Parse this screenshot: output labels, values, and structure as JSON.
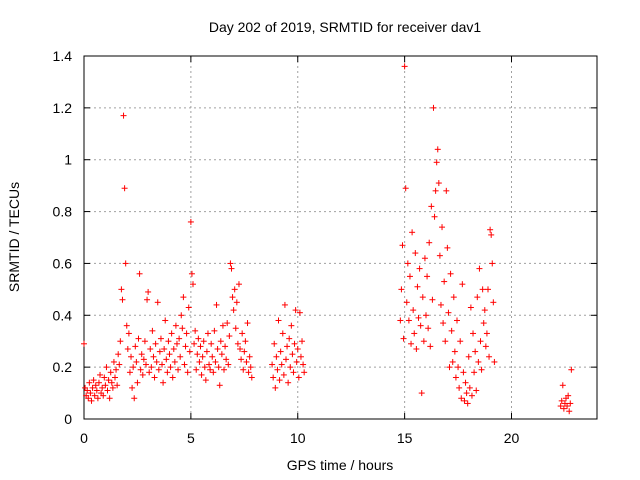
{
  "chart_data": {
    "type": "scatter",
    "title": "Day 202 of 2019, SRMTID for receiver dav1",
    "xlabel": "GPS time / hours",
    "ylabel": "SRMTID / TECUs",
    "xlim": [
      0,
      24
    ],
    "ylim": [
      0,
      1.4
    ],
    "xticks": [
      0,
      5,
      10,
      15,
      20
    ],
    "yticks": [
      0,
      0.2,
      0.4,
      0.6,
      0.8,
      1,
      1.2,
      1.4
    ],
    "xtick_labels": [
      "0",
      "5",
      "10",
      "15",
      "20"
    ],
    "ytick_labels": [
      "0",
      "0.2",
      "0.4",
      "0.6",
      "0.8",
      "1",
      "1.2",
      "1.4"
    ],
    "grid": true,
    "marker": "+",
    "series": [
      {
        "name": "SRMTID",
        "color": "#ff0000",
        "points": [
          [
            0.0,
            0.29
          ],
          [
            0.05,
            0.12
          ],
          [
            0.1,
            0.09
          ],
          [
            0.15,
            0.11
          ],
          [
            0.2,
            0.08
          ],
          [
            0.25,
            0.14
          ],
          [
            0.3,
            0.1
          ],
          [
            0.35,
            0.07
          ],
          [
            0.4,
            0.12
          ],
          [
            0.45,
            0.15
          ],
          [
            0.5,
            0.09
          ],
          [
            0.55,
            0.13
          ],
          [
            0.6,
            0.11
          ],
          [
            0.65,
            0.08
          ],
          [
            0.7,
            0.14
          ],
          [
            0.75,
            0.17
          ],
          [
            0.8,
            0.1
          ],
          [
            0.85,
            0.12
          ],
          [
            0.9,
            0.09
          ],
          [
            0.95,
            0.16
          ],
          [
            1.0,
            0.13
          ],
          [
            1.05,
            0.2
          ],
          [
            1.1,
            0.11
          ],
          [
            1.15,
            0.15
          ],
          [
            1.2,
            0.08
          ],
          [
            1.25,
            0.18
          ],
          [
            1.3,
            0.14
          ],
          [
            1.35,
            0.12
          ],
          [
            1.4,
            0.22
          ],
          [
            1.45,
            0.16
          ],
          [
            1.5,
            0.19
          ],
          [
            1.55,
            0.13
          ],
          [
            1.6,
            0.25
          ],
          [
            1.65,
            0.21
          ],
          [
            1.7,
            0.3
          ],
          [
            1.75,
            0.5
          ],
          [
            1.8,
            0.46
          ],
          [
            1.85,
            1.17
          ],
          [
            1.9,
            0.89
          ],
          [
            1.95,
            0.6
          ],
          [
            2.0,
            0.36
          ],
          [
            2.05,
            0.27
          ],
          [
            2.1,
            0.33
          ],
          [
            2.15,
            0.18
          ],
          [
            2.2,
            0.24
          ],
          [
            2.25,
            0.12
          ],
          [
            2.3,
            0.2
          ],
          [
            2.35,
            0.08
          ],
          [
            2.4,
            0.28
          ],
          [
            2.45,
            0.22
          ],
          [
            2.5,
            0.14
          ],
          [
            2.55,
            0.31
          ],
          [
            2.6,
            0.56
          ],
          [
            2.65,
            0.19
          ],
          [
            2.7,
            0.25
          ],
          [
            2.75,
            0.17
          ],
          [
            2.8,
            0.23
          ],
          [
            2.85,
            0.3
          ],
          [
            2.9,
            0.21
          ],
          [
            2.95,
            0.46
          ],
          [
            3.0,
            0.49
          ],
          [
            3.05,
            0.18
          ],
          [
            3.1,
            0.27
          ],
          [
            3.15,
            0.2
          ],
          [
            3.2,
            0.34
          ],
          [
            3.25,
            0.24
          ],
          [
            3.3,
            0.16
          ],
          [
            3.35,
            0.29
          ],
          [
            3.4,
            0.22
          ],
          [
            3.45,
            0.45
          ],
          [
            3.5,
            0.19
          ],
          [
            3.55,
            0.26
          ],
          [
            3.6,
            0.31
          ],
          [
            3.65,
            0.21
          ],
          [
            3.7,
            0.14
          ],
          [
            3.75,
            0.27
          ],
          [
            3.8,
            0.38
          ],
          [
            3.85,
            0.23
          ],
          [
            3.9,
            0.18
          ],
          [
            3.95,
            0.3
          ],
          [
            4.0,
            0.25
          ],
          [
            4.05,
            0.2
          ],
          [
            4.1,
            0.33
          ],
          [
            4.15,
            0.16
          ],
          [
            4.2,
            0.27
          ],
          [
            4.25,
            0.22
          ],
          [
            4.3,
            0.36
          ],
          [
            4.35,
            0.29
          ],
          [
            4.4,
            0.19
          ],
          [
            4.45,
            0.31
          ],
          [
            4.5,
            0.24
          ],
          [
            4.55,
            0.4
          ],
          [
            4.6,
            0.35
          ],
          [
            4.65,
            0.47
          ],
          [
            4.7,
            0.21
          ],
          [
            4.75,
            0.28
          ],
          [
            4.8,
            0.33
          ],
          [
            4.85,
            0.18
          ],
          [
            4.9,
            0.43
          ],
          [
            4.95,
            0.26
          ],
          [
            5.0,
            0.76
          ],
          [
            5.05,
            0.56
          ],
          [
            5.1,
            0.52
          ],
          [
            5.15,
            0.29
          ],
          [
            5.2,
            0.34
          ],
          [
            5.25,
            0.19
          ],
          [
            5.3,
            0.25
          ],
          [
            5.35,
            0.31
          ],
          [
            5.4,
            0.22
          ],
          [
            5.45,
            0.28
          ],
          [
            5.5,
            0.17
          ],
          [
            5.55,
            0.24
          ],
          [
            5.6,
            0.3
          ],
          [
            5.65,
            0.2
          ],
          [
            5.7,
            0.15
          ],
          [
            5.75,
            0.26
          ],
          [
            5.8,
            0.33
          ],
          [
            5.85,
            0.21
          ],
          [
            5.9,
            0.19
          ],
          [
            5.95,
            0.29
          ],
          [
            6.0,
            0.24
          ],
          [
            6.05,
            0.18
          ],
          [
            6.1,
            0.34
          ],
          [
            6.15,
            0.22
          ],
          [
            6.2,
            0.44
          ],
          [
            6.25,
            0.27
          ],
          [
            6.3,
            0.2
          ],
          [
            6.35,
            0.13
          ],
          [
            6.4,
            0.3
          ],
          [
            6.45,
            0.25
          ],
          [
            6.5,
            0.36
          ],
          [
            6.55,
            0.19
          ],
          [
            6.6,
            0.28
          ],
          [
            6.65,
            0.23
          ],
          [
            6.7,
            0.37
          ],
          [
            6.75,
            0.21
          ],
          [
            6.8,
            0.32
          ],
          [
            6.85,
            0.6
          ],
          [
            6.9,
            0.58
          ],
          [
            6.95,
            0.47
          ],
          [
            7.0,
            0.42
          ],
          [
            7.05,
            0.5
          ],
          [
            7.1,
            0.35
          ],
          [
            7.15,
            0.45
          ],
          [
            7.2,
            0.29
          ],
          [
            7.25,
            0.52
          ],
          [
            7.3,
            0.27
          ],
          [
            7.35,
            0.23
          ],
          [
            7.4,
            0.33
          ],
          [
            7.45,
            0.19
          ],
          [
            7.5,
            0.26
          ],
          [
            7.55,
            0.3
          ],
          [
            7.6,
            0.22
          ],
          [
            7.65,
            0.37
          ],
          [
            7.7,
            0.18
          ],
          [
            7.75,
            0.24
          ],
          [
            7.8,
            0.2
          ],
          [
            7.85,
            0.16
          ],
          [
            8.8,
            0.21
          ],
          [
            8.85,
            0.16
          ],
          [
            8.9,
            0.29
          ],
          [
            8.95,
            0.12
          ],
          [
            9.0,
            0.24
          ],
          [
            9.05,
            0.19
          ],
          [
            9.1,
            0.38
          ],
          [
            9.15,
            0.15
          ],
          [
            9.2,
            0.26
          ],
          [
            9.25,
            0.21
          ],
          [
            9.3,
            0.33
          ],
          [
            9.35,
            0.17
          ],
          [
            9.4,
            0.44
          ],
          [
            9.45,
            0.23
          ],
          [
            9.5,
            0.28
          ],
          [
            9.55,
            0.14
          ],
          [
            9.6,
            0.31
          ],
          [
            9.65,
            0.2
          ],
          [
            9.7,
            0.36
          ],
          [
            9.75,
            0.25
          ],
          [
            9.8,
            0.18
          ],
          [
            9.85,
            0.29
          ],
          [
            9.9,
            0.42
          ],
          [
            9.95,
            0.22
          ],
          [
            10.0,
            0.27
          ],
          [
            10.05,
            0.16
          ],
          [
            10.1,
            0.41
          ],
          [
            10.15,
            0.24
          ],
          [
            10.2,
            0.3
          ],
          [
            10.25,
            0.21
          ],
          [
            10.3,
            0.18
          ],
          [
            14.8,
            0.38
          ],
          [
            14.85,
            0.5
          ],
          [
            14.9,
            0.67
          ],
          [
            14.95,
            0.31
          ],
          [
            15.0,
            1.36
          ],
          [
            15.05,
            0.89
          ],
          [
            15.1,
            0.45
          ],
          [
            15.15,
            0.6
          ],
          [
            15.2,
            0.38
          ],
          [
            15.25,
            0.55
          ],
          [
            15.3,
            0.29
          ],
          [
            15.35,
            0.72
          ],
          [
            15.4,
            0.42
          ],
          [
            15.45,
            0.33
          ],
          [
            15.5,
            0.64
          ],
          [
            15.55,
            0.27
          ],
          [
            15.6,
            0.51
          ],
          [
            15.65,
            0.39
          ],
          [
            15.7,
            0.58
          ],
          [
            15.75,
            0.36
          ],
          [
            15.8,
            0.1
          ],
          [
            15.85,
            0.47
          ],
          [
            15.9,
            0.3
          ],
          [
            15.95,
            0.62
          ],
          [
            16.0,
            0.4
          ],
          [
            16.05,
            0.55
          ],
          [
            16.1,
            0.35
          ],
          [
            16.15,
            0.68
          ],
          [
            16.2,
            0.28
          ],
          [
            16.25,
            0.82
          ],
          [
            16.3,
            0.46
          ],
          [
            16.35,
            1.2
          ],
          [
            16.4,
            0.78
          ],
          [
            16.45,
            0.88
          ],
          [
            16.5,
            0.99
          ],
          [
            16.55,
            1.04
          ],
          [
            16.6,
            0.91
          ],
          [
            16.65,
            0.63
          ],
          [
            16.7,
            0.44
          ],
          [
            16.75,
            0.74
          ],
          [
            16.8,
            0.37
          ],
          [
            16.85,
            0.53
          ],
          [
            16.9,
            0.3
          ],
          [
            16.95,
            0.88
          ],
          [
            17.0,
            0.66
          ],
          [
            17.05,
            0.41
          ],
          [
            17.1,
            0.2
          ],
          [
            17.15,
            0.56
          ],
          [
            17.2,
            0.34
          ],
          [
            17.25,
            0.22
          ],
          [
            17.3,
            0.47
          ],
          [
            17.35,
            0.26
          ],
          [
            17.4,
            0.16
          ],
          [
            17.45,
            0.38
          ],
          [
            17.5,
            0.2
          ],
          [
            17.55,
            0.12
          ],
          [
            17.6,
            0.3
          ],
          [
            17.65,
            0.08
          ],
          [
            17.7,
            0.52
          ],
          [
            17.75,
            0.18
          ],
          [
            17.8,
            0.07
          ],
          [
            17.85,
            0.14
          ],
          [
            17.9,
            0.1
          ],
          [
            17.95,
            0.06
          ],
          [
            18.0,
            0.24
          ],
          [
            18.05,
            0.12
          ],
          [
            18.1,
            0.43
          ],
          [
            18.15,
            0.09
          ],
          [
            18.2,
            0.33
          ],
          [
            18.25,
            0.18
          ],
          [
            18.3,
            0.26
          ],
          [
            18.35,
            0.11
          ],
          [
            18.4,
            0.47
          ],
          [
            18.45,
            0.22
          ],
          [
            18.5,
            0.58
          ],
          [
            18.55,
            0.3
          ],
          [
            18.6,
            0.19
          ],
          [
            18.65,
            0.5
          ],
          [
            18.7,
            0.37
          ],
          [
            18.75,
            0.42
          ],
          [
            18.8,
            0.28
          ],
          [
            18.85,
            0.33
          ],
          [
            18.9,
            0.5
          ],
          [
            18.95,
            0.24
          ],
          [
            19.0,
            0.73
          ],
          [
            19.05,
            0.71
          ],
          [
            19.1,
            0.6
          ],
          [
            19.15,
            0.45
          ],
          [
            19.2,
            0.22
          ],
          [
            22.3,
            0.05
          ],
          [
            22.35,
            0.07
          ],
          [
            22.4,
            0.13
          ],
          [
            22.45,
            0.04
          ],
          [
            22.5,
            0.06
          ],
          [
            22.55,
            0.08
          ],
          [
            22.6,
            0.05
          ],
          [
            22.65,
            0.09
          ],
          [
            22.7,
            0.03
          ],
          [
            22.75,
            0.06
          ],
          [
            22.8,
            0.19
          ]
        ]
      }
    ]
  }
}
